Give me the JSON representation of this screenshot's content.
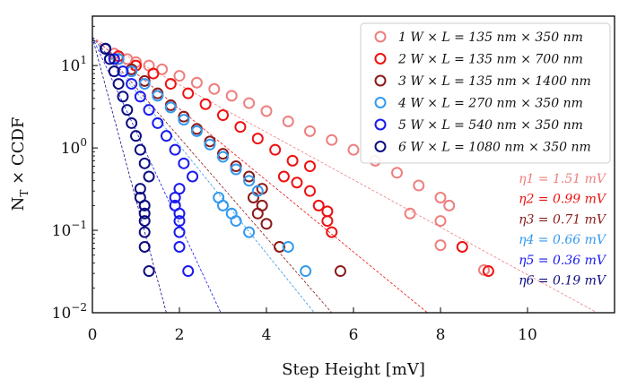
{
  "chart_data": {
    "type": "scatter",
    "xlabel": "Step Height [mV]",
    "ylabel": "N_T × CCDF",
    "xlim": [
      0,
      12
    ],
    "ylim_log10": [
      -2,
      1.6
    ],
    "y_scale": "log",
    "x_ticks": [
      0,
      2,
      4,
      6,
      8,
      10
    ],
    "y_ticks": [
      {
        "value": 0.01,
        "mantissa": "10",
        "exp": "−2"
      },
      {
        "value": 0.1,
        "mantissa": "10",
        "exp": "−1"
      },
      {
        "value": 1,
        "mantissa": "10",
        "exp": "0"
      },
      {
        "value": 10,
        "mantissa": "10",
        "exp": "1"
      }
    ],
    "legend_position": "top-right",
    "series": [
      {
        "name": "1 W × L = 135 nm × 350 nm",
        "color": "#ee7f7f",
        "eta_label": "η1 = 1.51 mV",
        "fit": {
          "x": [
            0.0,
            11.6
          ],
          "y": [
            22.0,
            0.01
          ]
        },
        "points": [
          [
            0.3,
            16
          ],
          [
            0.5,
            14
          ],
          [
            0.8,
            12
          ],
          [
            1.0,
            11
          ],
          [
            1.3,
            10
          ],
          [
            1.6,
            9
          ],
          [
            2.0,
            7.5
          ],
          [
            2.4,
            6.2
          ],
          [
            2.8,
            5.2
          ],
          [
            3.2,
            4.3
          ],
          [
            3.6,
            3.5
          ],
          [
            4.0,
            2.8
          ],
          [
            4.5,
            2.1
          ],
          [
            5.0,
            1.6
          ],
          [
            5.5,
            1.25
          ],
          [
            6.0,
            0.95
          ],
          [
            6.5,
            0.7
          ],
          [
            7.0,
            0.5
          ],
          [
            7.5,
            0.35
          ],
          [
            8.0,
            0.25
          ],
          [
            8.2,
            0.2
          ],
          [
            7.3,
            0.16
          ],
          [
            8.0,
            0.13
          ],
          [
            8.0,
            0.066
          ],
          [
            9.0,
            0.033
          ]
        ]
      },
      {
        "name": "2 W × L = 135 nm × 700 nm",
        "color": "#ee1111",
        "eta_label": "η2 = 0.99 mV",
        "fit": {
          "x": [
            0.0,
            7.7
          ],
          "y": [
            22.0,
            0.01
          ]
        },
        "points": [
          [
            0.3,
            16
          ],
          [
            0.6,
            13
          ],
          [
            1.0,
            10
          ],
          [
            1.4,
            8
          ],
          [
            1.8,
            6
          ],
          [
            2.2,
            4.6
          ],
          [
            2.6,
            3.4
          ],
          [
            3.0,
            2.5
          ],
          [
            3.4,
            1.8
          ],
          [
            3.8,
            1.3
          ],
          [
            4.2,
            0.95
          ],
          [
            4.6,
            0.7
          ],
          [
            5.0,
            0.6
          ],
          [
            4.4,
            0.45
          ],
          [
            4.7,
            0.38
          ],
          [
            5.0,
            0.3
          ],
          [
            5.2,
            0.2
          ],
          [
            5.4,
            0.17
          ],
          [
            5.4,
            0.13
          ],
          [
            5.5,
            0.095
          ],
          [
            8.5,
            0.063
          ],
          [
            9.1,
            0.032
          ]
        ]
      },
      {
        "name": "3 W × L = 135 nm × 1400 nm",
        "color": "#8b1a1a",
        "eta_label": "η3 = 0.71 mV",
        "fit": {
          "x": [
            0.0,
            5.5
          ],
          "y": [
            22.0,
            0.01
          ]
        },
        "points": [
          [
            0.3,
            16
          ],
          [
            0.6,
            12
          ],
          [
            0.9,
            9
          ],
          [
            1.2,
            6.5
          ],
          [
            1.5,
            4.6
          ],
          [
            1.8,
            3.3
          ],
          [
            2.1,
            2.4
          ],
          [
            2.4,
            1.7
          ],
          [
            2.7,
            1.2
          ],
          [
            3.0,
            0.85
          ],
          [
            3.3,
            0.6
          ],
          [
            3.6,
            0.45
          ],
          [
            3.9,
            0.32
          ],
          [
            3.7,
            0.25
          ],
          [
            3.9,
            0.2
          ],
          [
            3.8,
            0.16
          ],
          [
            4.0,
            0.12
          ],
          [
            4.3,
            0.063
          ],
          [
            5.7,
            0.032
          ]
        ]
      },
      {
        "name": "4 W × L = 270 nm × 350 nm",
        "color": "#3399ee",
        "eta_label": "η4 = 0.66 mV",
        "fit": {
          "x": [
            0.0,
            5.1
          ],
          "y": [
            22.0,
            0.01
          ]
        },
        "points": [
          [
            0.3,
            16
          ],
          [
            0.6,
            12
          ],
          [
            0.9,
            8.5
          ],
          [
            1.2,
            6
          ],
          [
            1.5,
            4.3
          ],
          [
            1.8,
            3.1
          ],
          [
            2.1,
            2.2
          ],
          [
            2.4,
            1.6
          ],
          [
            2.7,
            1.1
          ],
          [
            3.0,
            0.78
          ],
          [
            3.3,
            0.55
          ],
          [
            3.6,
            0.4
          ],
          [
            3.8,
            0.3
          ],
          [
            2.9,
            0.25
          ],
          [
            3.0,
            0.2
          ],
          [
            3.2,
            0.16
          ],
          [
            3.3,
            0.13
          ],
          [
            3.6,
            0.095
          ],
          [
            4.5,
            0.063
          ],
          [
            4.9,
            0.032
          ]
        ]
      },
      {
        "name": "5 W × L = 540 nm × 350 nm",
        "color": "#1a1aee",
        "eta_label": "η5 = 0.36 mV",
        "fit": {
          "x": [
            0.0,
            2.95
          ],
          "y": [
            22.0,
            0.01
          ]
        },
        "points": [
          [
            0.3,
            16
          ],
          [
            0.5,
            12
          ],
          [
            0.7,
            8.5
          ],
          [
            0.9,
            6
          ],
          [
            1.1,
            4.2
          ],
          [
            1.3,
            2.9
          ],
          [
            1.5,
            2.0
          ],
          [
            1.7,
            1.4
          ],
          [
            1.9,
            0.95
          ],
          [
            2.1,
            0.65
          ],
          [
            2.3,
            0.45
          ],
          [
            2.0,
            0.32
          ],
          [
            1.9,
            0.25
          ],
          [
            1.9,
            0.2
          ],
          [
            2.0,
            0.16
          ],
          [
            2.0,
            0.13
          ],
          [
            2.0,
            0.095
          ],
          [
            2.0,
            0.063
          ],
          [
            2.2,
            0.032
          ]
        ]
      },
      {
        "name": "6 W × L = 1080 nm × 350 nm",
        "color": "#0d0d80",
        "eta_label": "η6 = 0.19 mV",
        "fit": {
          "x": [
            0.0,
            1.7
          ],
          "y": [
            22.0,
            0.01
          ]
        },
        "points": [
          [
            0.3,
            16
          ],
          [
            0.4,
            12
          ],
          [
            0.5,
            8.5
          ],
          [
            0.6,
            6
          ],
          [
            0.7,
            4.2
          ],
          [
            0.8,
            2.9
          ],
          [
            0.9,
            2.0
          ],
          [
            1.0,
            1.4
          ],
          [
            1.1,
            0.95
          ],
          [
            1.2,
            0.65
          ],
          [
            1.3,
            0.45
          ],
          [
            1.1,
            0.32
          ],
          [
            1.1,
            0.25
          ],
          [
            1.2,
            0.2
          ],
          [
            1.2,
            0.16
          ],
          [
            1.2,
            0.13
          ],
          [
            1.2,
            0.095
          ],
          [
            1.2,
            0.063
          ],
          [
            1.3,
            0.032
          ]
        ]
      }
    ]
  }
}
